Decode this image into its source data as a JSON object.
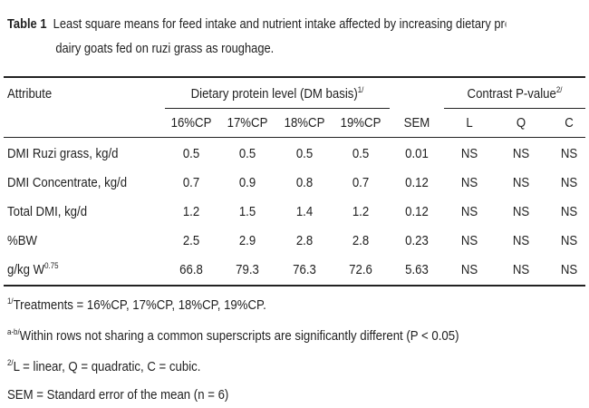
{
  "caption": {
    "label": "Table 1",
    "line1": "Least square means for feed intake and nutrient intake affected by increasing dietary protein level o",
    "line2": "dairy goats fed on ruzi grass as roughage."
  },
  "table": {
    "attribute_header": "Attribute",
    "group1_header": "Dietary protein level (DM basis)",
    "group1_sup": "1/",
    "group2_header": "Contrast P-value",
    "group2_sup": "2/",
    "columns": [
      "16%CP",
      "17%CP",
      "18%CP",
      "19%CP",
      "SEM",
      "L",
      "Q",
      "C"
    ],
    "rows": [
      {
        "label": "DMI Ruzi grass, kg/d",
        "label_sup": "",
        "values": [
          "0.5",
          "0.5",
          "0.5",
          "0.5",
          "0.01",
          "NS",
          "NS",
          "NS"
        ]
      },
      {
        "label": "DMI Concentrate, kg/d",
        "label_sup": "",
        "values": [
          "0.7",
          "0.9",
          "0.8",
          "0.7",
          "0.12",
          "NS",
          "NS",
          "NS"
        ]
      },
      {
        "label": "Total DMI, kg/d",
        "label_sup": "",
        "values": [
          "1.2",
          "1.5",
          "1.4",
          "1.2",
          "0.12",
          "NS",
          "NS",
          "NS"
        ]
      },
      {
        "label": "%BW",
        "label_sup": "",
        "values": [
          "2.5",
          "2.9",
          "2.8",
          "2.8",
          "0.23",
          "NS",
          "NS",
          "NS"
        ]
      },
      {
        "label": "g/kg W",
        "label_sup": "0.75",
        "values": [
          "66.8",
          "79.3",
          "76.3",
          "72.6",
          "5.63",
          "NS",
          "NS",
          "NS"
        ]
      }
    ]
  },
  "footnotes": [
    {
      "mark": "1/",
      "text": "Treatments = 16%CP, 17%CP, 18%CP, 19%CP."
    },
    {
      "mark": "a-b/",
      "text": "Within rows not sharing a common superscripts are significantly different (P < 0.05)"
    },
    {
      "mark": "2/",
      "text": "L = linear, Q = quadratic, C = cubic."
    },
    {
      "mark": "",
      "text": "SEM = Standard error of the mean (n = 6)"
    }
  ]
}
